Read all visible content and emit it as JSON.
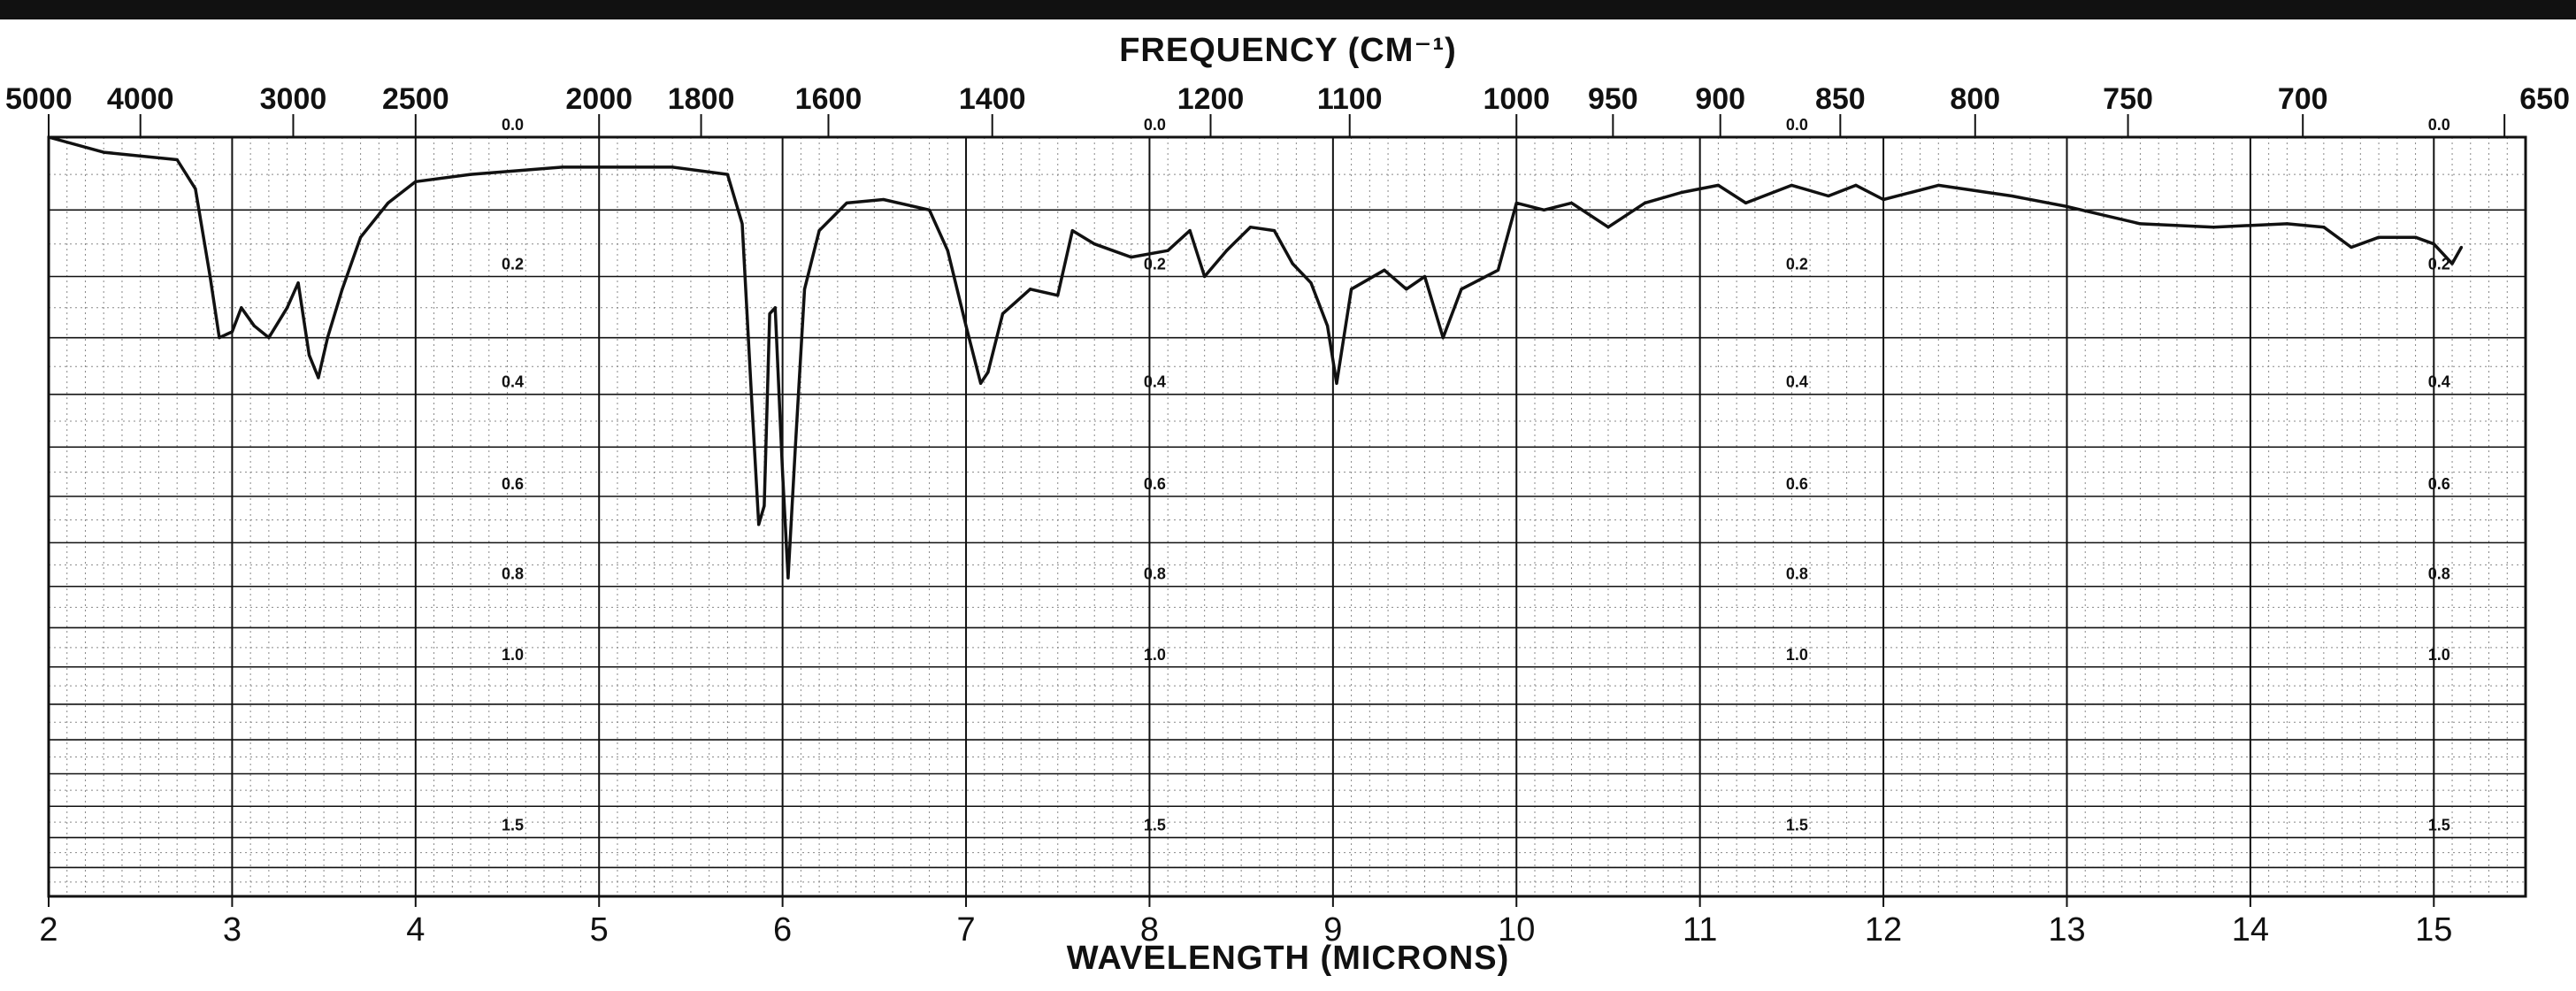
{
  "chart_data": {
    "type": "line",
    "title": "FREQUENCY (CM⁻¹)",
    "xlabel": "WAVELENGTH (MICRONS)",
    "ylabel": "",
    "xlim": [
      2,
      15.5
    ],
    "x_ticks": [
      "2",
      "3",
      "4",
      "5",
      "6",
      "7",
      "8",
      "9",
      "10",
      "11",
      "12",
      "13",
      "14",
      "15"
    ],
    "frequency_ticks": [
      {
        "label": "5000",
        "wl": 2.0
      },
      {
        "label": "4000",
        "wl": 2.5
      },
      {
        "label": "3000",
        "wl": 3.333
      },
      {
        "label": "2500",
        "wl": 4.0
      },
      {
        "label": "2000",
        "wl": 5.0
      },
      {
        "label": "1800",
        "wl": 5.556
      },
      {
        "label": "1600",
        "wl": 6.25
      },
      {
        "label": "1400",
        "wl": 7.143
      },
      {
        "label": "1200",
        "wl": 8.333
      },
      {
        "label": "1100",
        "wl": 9.091
      },
      {
        "label": "1000",
        "wl": 10.0
      },
      {
        "label": "950",
        "wl": 10.526
      },
      {
        "label": "900",
        "wl": 11.111
      },
      {
        "label": "850",
        "wl": 11.765
      },
      {
        "label": "800",
        "wl": 12.5
      },
      {
        "label": "750",
        "wl": 13.333
      },
      {
        "label": "700",
        "wl": 14.286
      },
      {
        "label": "650",
        "wl": 15.385
      }
    ],
    "absorbance_axis": {
      "scale": "log",
      "ylim": [
        0,
        1.7
      ],
      "ticks": [
        {
          "label": "0.0",
          "value": 0.0
        },
        {
          "label": "0.2",
          "value": 0.2
        },
        {
          "label": "0.4",
          "value": 0.4
        },
        {
          "label": "0.6",
          "value": 0.6
        },
        {
          "label": "0.8",
          "value": 0.8
        },
        {
          "label": "1.0",
          "value": 1.0
        },
        {
          "label": "1.5",
          "value": 1.5
        }
      ],
      "label_positions_wl": [
        4.5,
        8.0,
        11.5,
        15.0
      ]
    },
    "grid": true,
    "series": [
      {
        "points": [
          [
            2.0,
            0.0
          ],
          [
            2.3,
            0.02
          ],
          [
            2.7,
            0.03
          ],
          [
            2.8,
            0.07
          ],
          [
            2.88,
            0.2
          ],
          [
            2.93,
            0.3
          ],
          [
            3.0,
            0.29
          ],
          [
            3.05,
            0.25
          ],
          [
            3.12,
            0.28
          ],
          [
            3.2,
            0.3
          ],
          [
            3.3,
            0.25
          ],
          [
            3.36,
            0.21
          ],
          [
            3.42,
            0.33
          ],
          [
            3.47,
            0.37
          ],
          [
            3.52,
            0.3
          ],
          [
            3.6,
            0.22
          ],
          [
            3.7,
            0.14
          ],
          [
            3.85,
            0.09
          ],
          [
            4.0,
            0.06
          ],
          [
            4.3,
            0.05
          ],
          [
            4.8,
            0.04
          ],
          [
            5.4,
            0.04
          ],
          [
            5.7,
            0.05
          ],
          [
            5.78,
            0.12
          ],
          [
            5.83,
            0.4
          ],
          [
            5.87,
            0.66
          ],
          [
            5.9,
            0.62
          ],
          [
            5.93,
            0.26
          ],
          [
            5.96,
            0.25
          ],
          [
            6.0,
            0.55
          ],
          [
            6.03,
            0.78
          ],
          [
            6.07,
            0.5
          ],
          [
            6.12,
            0.22
          ],
          [
            6.2,
            0.13
          ],
          [
            6.35,
            0.09
          ],
          [
            6.55,
            0.085
          ],
          [
            6.8,
            0.1
          ],
          [
            6.9,
            0.16
          ],
          [
            7.0,
            0.28
          ],
          [
            7.08,
            0.38
          ],
          [
            7.12,
            0.36
          ],
          [
            7.2,
            0.26
          ],
          [
            7.35,
            0.22
          ],
          [
            7.5,
            0.23
          ],
          [
            7.58,
            0.13
          ],
          [
            7.7,
            0.15
          ],
          [
            7.9,
            0.17
          ],
          [
            8.1,
            0.16
          ],
          [
            8.22,
            0.13
          ],
          [
            8.3,
            0.2
          ],
          [
            8.42,
            0.16
          ],
          [
            8.55,
            0.125
          ],
          [
            8.68,
            0.13
          ],
          [
            8.78,
            0.18
          ],
          [
            8.88,
            0.21
          ],
          [
            8.97,
            0.28
          ],
          [
            9.02,
            0.38
          ],
          [
            9.1,
            0.22
          ],
          [
            9.28,
            0.19
          ],
          [
            9.4,
            0.22
          ],
          [
            9.5,
            0.2
          ],
          [
            9.6,
            0.3
          ],
          [
            9.7,
            0.22
          ],
          [
            9.9,
            0.19
          ],
          [
            10.0,
            0.09
          ],
          [
            10.15,
            0.1
          ],
          [
            10.3,
            0.09
          ],
          [
            10.5,
            0.125
          ],
          [
            10.7,
            0.09
          ],
          [
            10.9,
            0.075
          ],
          [
            11.1,
            0.065
          ],
          [
            11.25,
            0.09
          ],
          [
            11.5,
            0.065
          ],
          [
            11.7,
            0.08
          ],
          [
            11.85,
            0.065
          ],
          [
            12.0,
            0.085
          ],
          [
            12.3,
            0.065
          ],
          [
            12.7,
            0.08
          ],
          [
            13.0,
            0.095
          ],
          [
            13.4,
            0.12
          ],
          [
            13.8,
            0.125
          ],
          [
            14.2,
            0.12
          ],
          [
            14.4,
            0.125
          ],
          [
            14.55,
            0.155
          ],
          [
            14.7,
            0.14
          ],
          [
            14.9,
            0.14
          ],
          [
            15.0,
            0.15
          ],
          [
            15.1,
            0.18
          ],
          [
            15.15,
            0.155
          ]
        ]
      }
    ]
  }
}
